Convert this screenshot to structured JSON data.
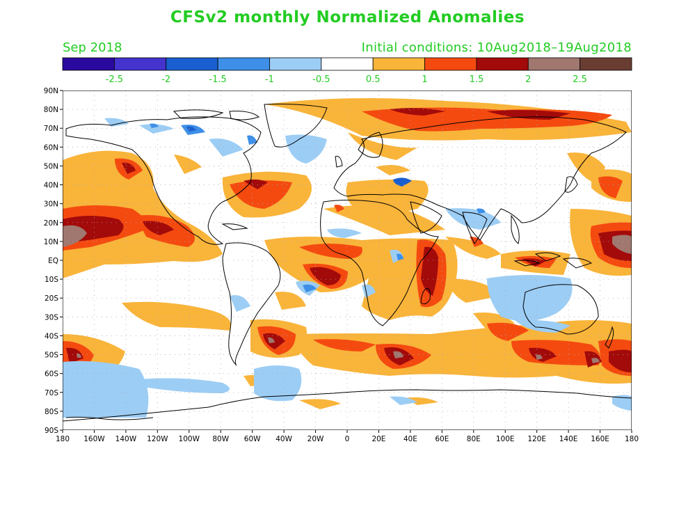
{
  "title": "CFSv2 monthly Normalized Anomalies",
  "month": "Sep 2018",
  "initial_conditions": "Initial conditions: 10Aug2018–19Aug2018",
  "colorbar": {
    "colors": [
      "#2a0a9e",
      "#4433cc",
      "#1a5fd0",
      "#3d8fe8",
      "#9ccdf5",
      "#ffffff",
      "#f9b43a",
      "#f44a10",
      "#a30a0a",
      "#a07870",
      "#6a3d33"
    ],
    "ticks": [
      "-2.5",
      "-2",
      "-1.5",
      "-1",
      "-0.5",
      "0.5",
      "1",
      "1.5",
      "2",
      "2.5"
    ]
  },
  "map": {
    "lat_labels": [
      "90N",
      "80N",
      "70N",
      "60N",
      "50N",
      "40N",
      "30N",
      "20N",
      "10N",
      "EQ",
      "10S",
      "20S",
      "30S",
      "40S",
      "50S",
      "60S",
      "70S",
      "80S",
      "90S"
    ],
    "lon_labels": [
      "180",
      "160W",
      "140W",
      "120W",
      "100W",
      "80W",
      "60W",
      "40W",
      "20W",
      "0",
      "20E",
      "40E",
      "60E",
      "80E",
      "100E",
      "120E",
      "140E",
      "160E",
      "180"
    ]
  }
}
